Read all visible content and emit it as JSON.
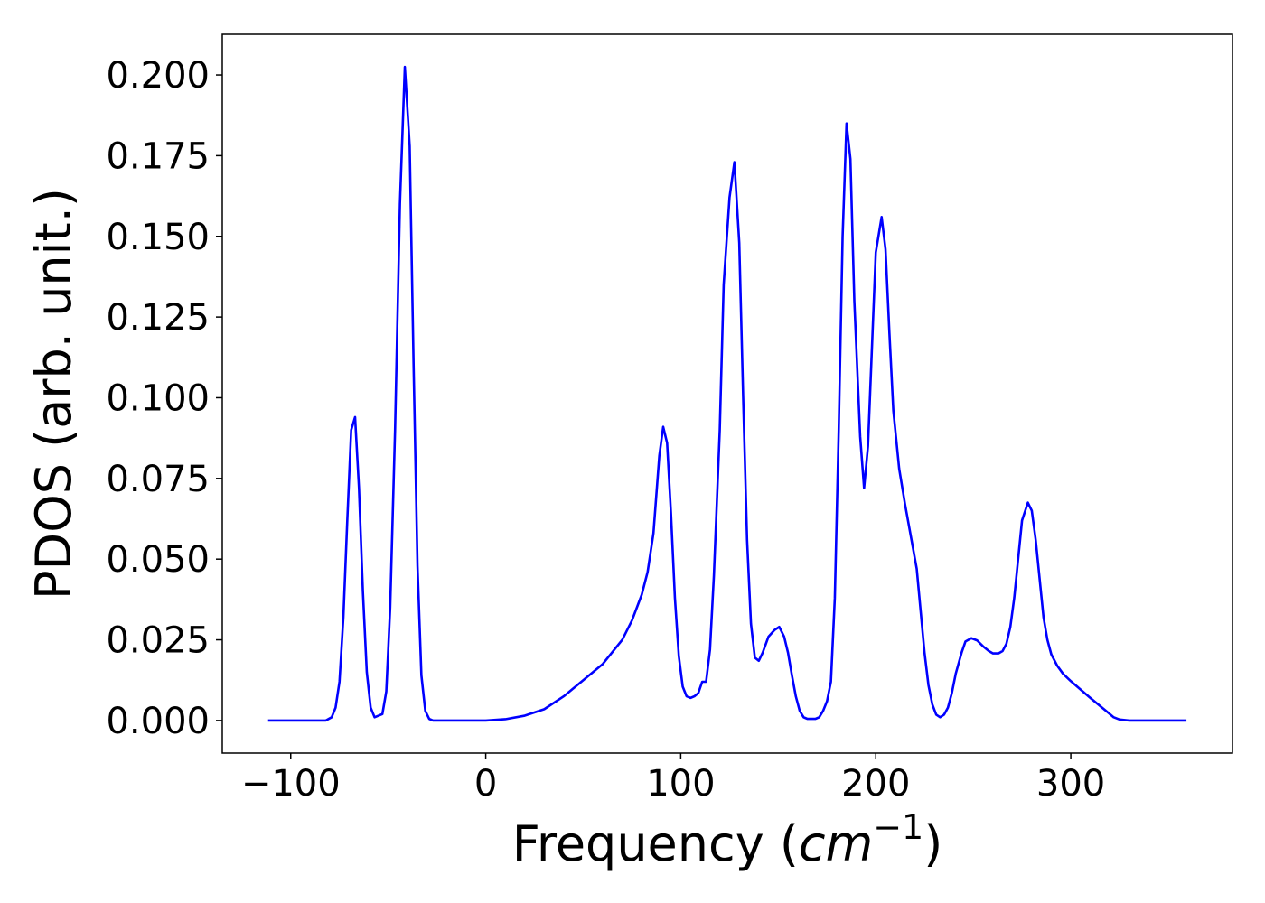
{
  "chart_data": {
    "type": "line",
    "x_label": [
      "Frequency (",
      "cm",
      "−1",
      ")"
    ],
    "y_label": "PDOS (arb. unit.)",
    "x": [
      -111.6,
      -82,
      -79,
      -77,
      -75,
      -73,
      -71,
      -69,
      -67,
      -65,
      -63,
      -61,
      -59,
      -57,
      -55,
      -53,
      -51,
      -49,
      -46.5,
      -44,
      -41.5,
      -39,
      -37,
      -35,
      -33,
      -31,
      -29,
      -27,
      0,
      10,
      20,
      30,
      40,
      50,
      60,
      70,
      75,
      80,
      83,
      86,
      89,
      91,
      93,
      95,
      97,
      99,
      101,
      103,
      105,
      107,
      109,
      111,
      113,
      115,
      117,
      120,
      122,
      125,
      127.5,
      130,
      132,
      134,
      136,
      138,
      140,
      142,
      145,
      148,
      150.5,
      153,
      155,
      157,
      159,
      161,
      163,
      165,
      167,
      169,
      171,
      173,
      175,
      177,
      179,
      181,
      183,
      185,
      187,
      189,
      192,
      194,
      196,
      198,
      200,
      203,
      205,
      207,
      209,
      212,
      215,
      218,
      221,
      223,
      225,
      227,
      229,
      231,
      233,
      235,
      237,
      239,
      241,
      244,
      246,
      249,
      252,
      255,
      258,
      260,
      263,
      265,
      267,
      269,
      271,
      273,
      275,
      278,
      280,
      282,
      284,
      286,
      288,
      290,
      293,
      296,
      300,
      310,
      318,
      322,
      325,
      330,
      359.3
    ],
    "series": [
      {
        "color": "#0000ff",
        "values": [
          0,
          0,
          0.001,
          0.004,
          0.012,
          0.032,
          0.062,
          0.09,
          0.094,
          0.072,
          0.04,
          0.015,
          0.004,
          0.001,
          0.0015,
          0.002,
          0.009,
          0.035,
          0.09,
          0.16,
          0.2025,
          0.178,
          0.11,
          0.048,
          0.014,
          0.003,
          0.0005,
          0,
          0,
          0.0004,
          0.0015,
          0.0035,
          0.0075,
          0.0125,
          0.0175,
          0.025,
          0.031,
          0.039,
          0.046,
          0.058,
          0.082,
          0.091,
          0.086,
          0.064,
          0.038,
          0.02,
          0.0105,
          0.0075,
          0.007,
          0.0075,
          0.0085,
          0.012,
          0.012,
          0.022,
          0.045,
          0.09,
          0.135,
          0.162,
          0.173,
          0.148,
          0.1,
          0.056,
          0.03,
          0.0195,
          0.0185,
          0.021,
          0.026,
          0.028,
          0.029,
          0.026,
          0.021,
          0.014,
          0.0075,
          0.003,
          0.001,
          0.0005,
          0.0005,
          0.0005,
          0.001,
          0.003,
          0.006,
          0.012,
          0.038,
          0.09,
          0.15,
          0.185,
          0.174,
          0.13,
          0.088,
          0.072,
          0.085,
          0.115,
          0.145,
          0.156,
          0.146,
          0.12,
          0.096,
          0.078,
          0.067,
          0.057,
          0.047,
          0.034,
          0.021,
          0.011,
          0.005,
          0.0018,
          0.001,
          0.0018,
          0.004,
          0.0085,
          0.0145,
          0.021,
          0.0245,
          0.0255,
          0.0248,
          0.023,
          0.0215,
          0.0208,
          0.0208,
          0.0215,
          0.0238,
          0.029,
          0.038,
          0.05,
          0.062,
          0.0675,
          0.065,
          0.056,
          0.044,
          0.032,
          0.025,
          0.0205,
          0.017,
          0.0145,
          0.0122,
          0.007,
          0.003,
          0.001,
          0.0003,
          0,
          0
        ]
      }
    ],
    "xlim": [
      -135.1,
      382.9
    ],
    "ylim": [
      -0.0101,
      0.2126
    ],
    "xticks": [
      {
        "value": -100,
        "label": "−100"
      },
      0,
      100,
      200,
      300
    ],
    "yticks": [
      {
        "value": 0,
        "label": "0.000"
      },
      {
        "value": 0.025,
        "label": "0.025"
      },
      {
        "value": 0.05,
        "label": "0.050"
      },
      {
        "value": 0.075,
        "label": "0.075"
      },
      {
        "value": 0.1,
        "label": "0.100"
      },
      {
        "value": 0.125,
        "label": "0.125"
      },
      {
        "value": 0.15,
        "label": "0.150"
      },
      {
        "value": 0.175,
        "label": "0.175"
      },
      {
        "value": 0.2,
        "label": "0.200"
      }
    ],
    "grid": false
  }
}
